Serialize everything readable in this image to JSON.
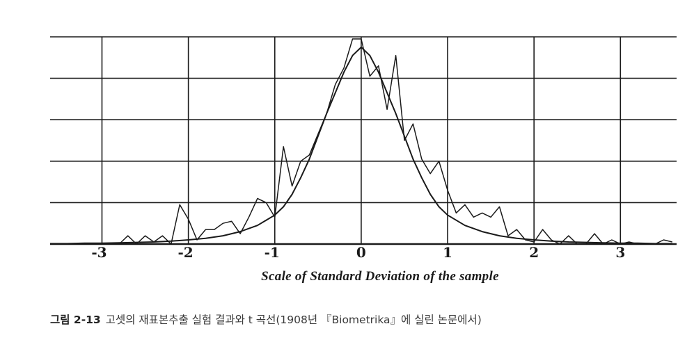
{
  "chart_data": {
    "type": "line",
    "xlabel": "Scale of Standard Deviation of the sample",
    "ylabel": "",
    "title": "",
    "xlim": [
      -3.6,
      3.65
    ],
    "ylim": [
      0,
      5
    ],
    "x_ticks": [
      -3,
      -2,
      -1,
      0,
      1,
      2,
      3
    ],
    "x_tick_labels": [
      "-3",
      "-2",
      "-1",
      "0",
      "1",
      "2",
      "3"
    ],
    "y_gridlines": [
      0,
      1,
      2,
      3,
      4,
      5
    ],
    "grid": true,
    "series": [
      {
        "style": "jagged",
        "x": [
          -3.6,
          -2.8,
          -2.7,
          -2.6,
          -2.5,
          -2.4,
          -2.3,
          -2.2,
          -2.1,
          -2.0,
          -1.9,
          -1.8,
          -1.7,
          -1.6,
          -1.5,
          -1.4,
          -1.3,
          -1.2,
          -1.1,
          -1.0,
          -0.9,
          -0.8,
          -0.7,
          -0.6,
          -0.5,
          -0.4,
          -0.3,
          -0.2,
          -0.1,
          0.0,
          0.1,
          0.2,
          0.3,
          0.4,
          0.5,
          0.6,
          0.7,
          0.8,
          0.9,
          1.0,
          1.1,
          1.2,
          1.3,
          1.4,
          1.5,
          1.6,
          1.7,
          1.8,
          1.9,
          2.0,
          2.1,
          2.2,
          2.3,
          2.4,
          2.5,
          2.6,
          2.7,
          2.8,
          2.9,
          3.0,
          3.1,
          3.2,
          3.3,
          3.4,
          3.5,
          3.6
        ],
        "y": [
          0,
          0,
          0.2,
          0,
          0.2,
          0.05,
          0.2,
          0,
          0.95,
          0.6,
          0.1,
          0.35,
          0.35,
          0.5,
          0.55,
          0.25,
          0.65,
          1.1,
          1.0,
          0.65,
          2.35,
          1.4,
          2.0,
          2.15,
          2.65,
          3.15,
          3.85,
          4.25,
          4.95,
          4.95,
          4.05,
          4.3,
          3.25,
          4.55,
          2.5,
          2.9,
          2.05,
          1.7,
          2.0,
          1.3,
          0.75,
          0.95,
          0.65,
          0.75,
          0.65,
          0.9,
          0.2,
          0.35,
          0.1,
          0.05,
          0.35,
          0.1,
          0.0,
          0.2,
          0.0,
          0.0,
          0.25,
          0.0,
          0.1,
          0.0,
          0.05,
          0.0,
          0.0,
          0.0,
          0.1,
          0.05
        ]
      },
      {
        "style": "smooth",
        "x": [
          -3.6,
          -3.4,
          -3.2,
          -3.0,
          -2.8,
          -2.6,
          -2.4,
          -2.2,
          -2.0,
          -1.8,
          -1.6,
          -1.4,
          -1.2,
          -1.0,
          -0.9,
          -0.8,
          -0.7,
          -0.6,
          -0.5,
          -0.4,
          -0.3,
          -0.2,
          -0.1,
          0.0,
          0.1,
          0.2,
          0.3,
          0.4,
          0.5,
          0.6,
          0.7,
          0.8,
          0.9,
          1.0,
          1.2,
          1.4,
          1.6,
          1.8,
          2.0,
          2.2,
          2.4,
          2.6,
          2.8,
          3.0,
          3.2,
          3.4,
          3.6
        ],
        "y": [
          0.01,
          0.01,
          0.02,
          0.02,
          0.03,
          0.04,
          0.05,
          0.07,
          0.1,
          0.14,
          0.2,
          0.3,
          0.45,
          0.7,
          0.9,
          1.2,
          1.6,
          2.05,
          2.6,
          3.15,
          3.65,
          4.15,
          4.55,
          4.75,
          4.55,
          4.15,
          3.65,
          3.15,
          2.6,
          2.05,
          1.6,
          1.2,
          0.9,
          0.7,
          0.45,
          0.3,
          0.2,
          0.14,
          0.1,
          0.07,
          0.05,
          0.04,
          0.03,
          0.02,
          0.02,
          0.01,
          0.01
        ]
      }
    ]
  },
  "caption": {
    "figure_number": "그림 2-13",
    "text": "고셋의 재표본추출 실험 결과와 t 곡선(1908년 『Biometrika』에 실린 논문에서)"
  }
}
